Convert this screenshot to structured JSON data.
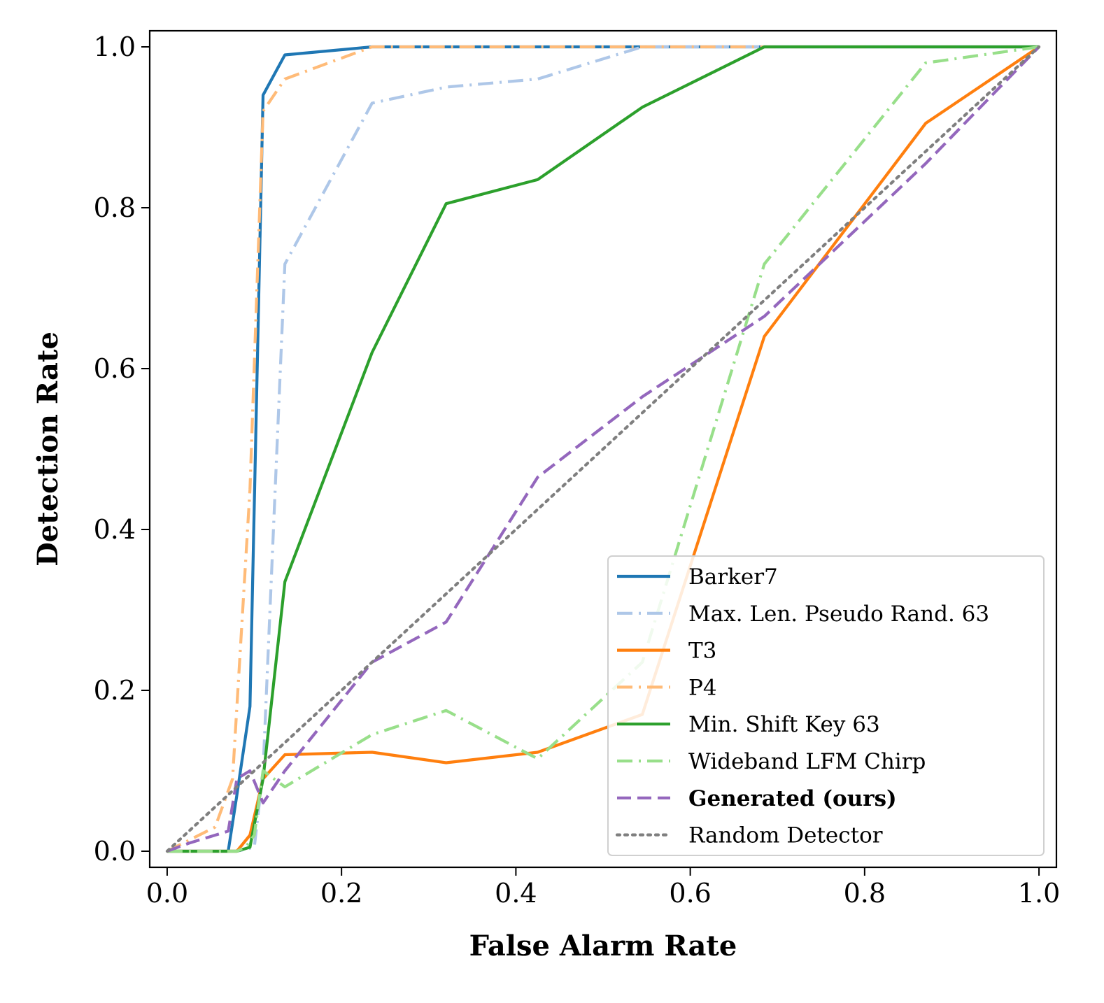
{
  "chart_data": {
    "type": "line",
    "title": "",
    "xlabel": "False Alarm Rate",
    "ylabel": "Detection Rate",
    "xlim": [
      -0.02,
      1.02
    ],
    "ylim": [
      -0.02,
      1.02
    ],
    "xticks": [
      "0.0",
      "0.2",
      "0.4",
      "0.6",
      "0.8",
      "1.0"
    ],
    "yticks": [
      "0.0",
      "0.2",
      "0.4",
      "0.6",
      "0.8",
      "1.0"
    ],
    "grid": false,
    "legend_position": "lower-right",
    "series": [
      {
        "name": "Barker7",
        "color": "#1f77b4",
        "style": "solid",
        "bold": false,
        "x": [
          0,
          0.07,
          0.08,
          0.095,
          0.11,
          0.135,
          0.235,
          1.0
        ],
        "y": [
          0,
          0,
          0.07,
          0.18,
          0.94,
          0.99,
          1.0,
          1.0
        ]
      },
      {
        "name": "Max. Len. Pseudo Rand. 63",
        "color": "#aec7e8",
        "style": "dashdot",
        "bold": false,
        "x": [
          0,
          0.08,
          0.1,
          0.11,
          0.135,
          0.235,
          0.32,
          0.425,
          0.545,
          1.0
        ],
        "y": [
          0,
          0,
          0.005,
          0.1,
          0.73,
          0.93,
          0.95,
          0.96,
          1.0,
          1.0
        ]
      },
      {
        "name": "T3",
        "color": "#ff7f0e",
        "style": "solid",
        "bold": false,
        "x": [
          0,
          0.08,
          0.095,
          0.11,
          0.135,
          0.235,
          0.32,
          0.425,
          0.545,
          0.685,
          0.87,
          1.0
        ],
        "y": [
          0,
          0,
          0.02,
          0.09,
          0.12,
          0.123,
          0.11,
          0.123,
          0.17,
          0.64,
          0.905,
          1.0
        ]
      },
      {
        "name": "P4",
        "color": "#ffbb78",
        "style": "dashdot",
        "bold": false,
        "x": [
          0,
          0.055,
          0.075,
          0.095,
          0.11,
          0.135,
          0.235,
          1.0
        ],
        "y": [
          0,
          0.03,
          0.09,
          0.45,
          0.92,
          0.96,
          1.0,
          1.0
        ]
      },
      {
        "name": "Min. Shift Key 63",
        "color": "#2ca02c",
        "style": "solid",
        "bold": false,
        "x": [
          0,
          0.08,
          0.095,
          0.11,
          0.135,
          0.235,
          0.32,
          0.425,
          0.545,
          0.685,
          1.0
        ],
        "y": [
          0,
          0,
          0.005,
          0.09,
          0.335,
          0.62,
          0.805,
          0.835,
          0.925,
          1.0,
          1.0
        ]
      },
      {
        "name": "Wideband LFM Chirp",
        "color": "#98df8a",
        "style": "dashdot",
        "bold": false,
        "x": [
          0,
          0.08,
          0.09,
          0.1,
          0.11,
          0.135,
          0.235,
          0.32,
          0.425,
          0.545,
          0.685,
          0.87,
          1.0
        ],
        "y": [
          0,
          0,
          0.005,
          0.02,
          0.1,
          0.08,
          0.145,
          0.175,
          0.115,
          0.235,
          0.73,
          0.98,
          1.0
        ]
      },
      {
        "name": "Generated (ours)",
        "color": "#9467bd",
        "style": "dashed",
        "bold": true,
        "x": [
          0,
          0.025,
          0.07,
          0.08,
          0.095,
          0.11,
          0.135,
          0.235,
          0.32,
          0.425,
          0.545,
          0.685,
          0.87,
          1.0
        ],
        "y": [
          0,
          0.01,
          0.025,
          0.09,
          0.1,
          0.06,
          0.1,
          0.235,
          0.285,
          0.465,
          0.565,
          0.665,
          0.855,
          1.0
        ]
      },
      {
        "name": "Random Detector",
        "color": "#7f7f7f",
        "style": "dotted",
        "bold": false,
        "x": [
          0,
          1.0
        ],
        "y": [
          0,
          1.0
        ]
      }
    ]
  }
}
